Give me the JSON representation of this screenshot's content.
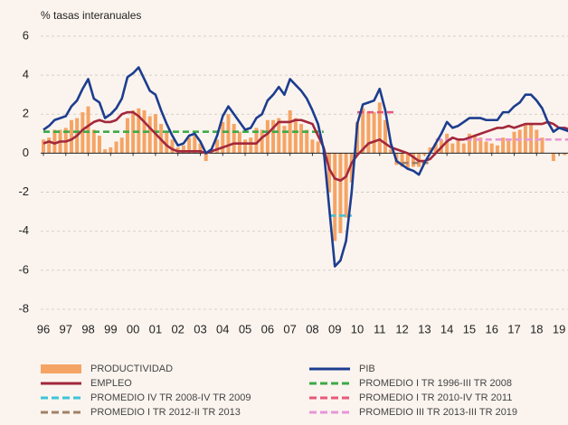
{
  "chart_data": {
    "type": "combo",
    "y_label": "% tasas interanuales",
    "x": [
      1996,
      1996.25,
      1996.5,
      1996.75,
      1997,
      1997.25,
      1997.5,
      1997.75,
      1998,
      1998.25,
      1998.5,
      1998.75,
      1999,
      1999.25,
      1999.5,
      1999.75,
      2000,
      2000.25,
      2000.5,
      2000.75,
      2001,
      2001.25,
      2001.5,
      2001.75,
      2002,
      2002.25,
      2002.5,
      2002.75,
      2003,
      2003.25,
      2003.5,
      2003.75,
      2004,
      2004.25,
      2004.5,
      2004.75,
      2005,
      2005.25,
      2005.5,
      2005.75,
      2006,
      2006.25,
      2006.5,
      2006.75,
      2007,
      2007.25,
      2007.5,
      2007.75,
      2008,
      2008.25,
      2008.5,
      2008.75,
      2009,
      2009.25,
      2009.5,
      2009.75,
      2010,
      2010.25,
      2010.5,
      2010.75,
      2011,
      2011.25,
      2011.5,
      2011.75,
      2012,
      2012.25,
      2012.5,
      2012.75,
      2013,
      2013.25,
      2013.5,
      2013.75,
      2014,
      2014.25,
      2014.5,
      2014.75,
      2015,
      2015.25,
      2015.5,
      2015.75,
      2016,
      2016.25,
      2016.5,
      2016.75,
      2017,
      2017.25,
      2017.5,
      2017.75,
      2018,
      2018.25,
      2018.5,
      2018.75,
      2019,
      2019.25,
      2019.5
    ],
    "series": [
      {
        "name": "PRODUCTIVIDAD",
        "type": "bar",
        "color": "#f5a465",
        "values": [
          0.7,
          0.8,
          1.2,
          1.2,
          1.3,
          1.7,
          1.8,
          2.1,
          2.4,
          1.2,
          0.9,
          0.2,
          0.3,
          0.6,
          0.8,
          1.8,
          2.2,
          2.3,
          2.2,
          1.9,
          2.0,
          1.5,
          1.1,
          0.7,
          0.3,
          0.4,
          0.8,
          0.9,
          0.5,
          -0.4,
          0.1,
          0.7,
          1.6,
          2.0,
          1.5,
          1.1,
          0.7,
          0.8,
          1.3,
          1.2,
          1.7,
          1.7,
          1.8,
          1.4,
          2.2,
          1.8,
          1.5,
          1.2,
          0.7,
          0.6,
          -0.1,
          -2.0,
          -4.5,
          -4.1,
          -3.3,
          -1.5,
          1.6,
          2.3,
          2.1,
          2.1,
          2.6,
          1.7,
          0.2,
          -0.6,
          -0.7,
          -0.8,
          -0.7,
          -0.7,
          -0.1,
          0.3,
          0.5,
          0.7,
          1.0,
          0.5,
          0.7,
          0.5,
          1.0,
          0.9,
          0.8,
          0.6,
          0.5,
          0.4,
          0.8,
          0.7,
          1.1,
          1.2,
          1.5,
          1.5,
          1.2,
          0.8,
          0.0,
          -0.4,
          0.0,
          -0.1,
          -0.1
        ]
      },
      {
        "name": "EMPLEO",
        "type": "line",
        "color": "#a3283c",
        "values": [
          0.5,
          0.6,
          0.5,
          0.6,
          0.6,
          0.7,
          0.9,
          1.2,
          1.4,
          1.6,
          1.7,
          1.6,
          1.6,
          1.7,
          2.0,
          2.1,
          2.1,
          1.9,
          1.6,
          1.3,
          1.0,
          0.7,
          0.4,
          0.2,
          0.1,
          0.1,
          0.1,
          0.1,
          0.1,
          0.0,
          0.1,
          0.2,
          0.3,
          0.4,
          0.5,
          0.5,
          0.5,
          0.5,
          0.5,
          0.8,
          1.0,
          1.3,
          1.6,
          1.6,
          1.6,
          1.7,
          1.7,
          1.6,
          1.5,
          0.9,
          0.3,
          -0.8,
          -1.3,
          -1.4,
          -1.2,
          -0.5,
          -0.1,
          0.2,
          0.5,
          0.6,
          0.7,
          0.5,
          0.3,
          0.2,
          0.1,
          0.0,
          -0.2,
          -0.4,
          -0.4,
          -0.3,
          0.0,
          0.3,
          0.6,
          0.8,
          0.7,
          0.7,
          0.8,
          0.9,
          1.0,
          1.1,
          1.2,
          1.3,
          1.3,
          1.4,
          1.3,
          1.4,
          1.5,
          1.5,
          1.5,
          1.5,
          1.6,
          1.5,
          1.3,
          1.3,
          1.2
        ]
      },
      {
        "name": "PIB",
        "type": "line",
        "color": "#1c3d8f",
        "values": [
          1.2,
          1.4,
          1.7,
          1.8,
          1.9,
          2.4,
          2.7,
          3.3,
          3.8,
          2.8,
          2.6,
          1.8,
          2.0,
          2.3,
          2.8,
          3.9,
          4.1,
          4.4,
          3.8,
          3.2,
          3.0,
          2.2,
          1.5,
          0.9,
          0.4,
          0.5,
          0.9,
          1.0,
          0.6,
          0.0,
          0.2,
          0.9,
          1.9,
          2.4,
          2.0,
          1.6,
          1.2,
          1.3,
          1.8,
          2.0,
          2.7,
          3.0,
          3.4,
          3.0,
          3.8,
          3.5,
          3.2,
          2.8,
          2.2,
          1.5,
          0.2,
          -2.8,
          -5.8,
          -5.5,
          -4.5,
          -2.0,
          1.5,
          2.5,
          2.6,
          2.7,
          3.3,
          2.2,
          0.5,
          -0.4,
          -0.6,
          -0.8,
          -0.9,
          -1.1,
          -0.5,
          0.0,
          0.5,
          1.0,
          1.6,
          1.3,
          1.4,
          1.6,
          1.8,
          1.8,
          1.8,
          1.7,
          1.7,
          1.7,
          2.1,
          2.1,
          2.4,
          2.6,
          3.0,
          3.0,
          2.7,
          2.3,
          1.6,
          1.1,
          1.3,
          1.2,
          1.1
        ]
      }
    ],
    "averages": [
      {
        "name": "PROMEDIO I TR 1996-III TR 2008",
        "color": "#3daa47",
        "value": 1.1,
        "x": [
          1996,
          2008.5
        ]
      },
      {
        "name": "PROMEDIO IV TR 2008-IV TR 2009",
        "color": "#3fc3d8",
        "value": -3.2,
        "x": [
          2008.75,
          2009.75
        ]
      },
      {
        "name": "PROMEDIO I TR 2010-IV TR 2011",
        "color": "#e8587a",
        "value": 2.1,
        "x": [
          2010,
          2011.75
        ]
      },
      {
        "name": "PROMEDIO I TR 2012-II TR 2013",
        "color": "#a08266",
        "value": -0.5,
        "x": [
          2012,
          2013.25
        ]
      },
      {
        "name": "PROMEDIO III TR 2013-III TR 2019",
        "color": "#e796d8",
        "value": 0.7,
        "x": [
          2013.5,
          2019.5
        ]
      }
    ],
    "xlim": [
      1995.88,
      2019.4
    ],
    "xticks": [
      {
        "value": 1996,
        "label": "96"
      },
      {
        "value": 1997,
        "label": "97"
      },
      {
        "value": 1998,
        "label": "98"
      },
      {
        "value": 1999,
        "label": "99"
      },
      {
        "value": 2000,
        "label": "00"
      },
      {
        "value": 2001,
        "label": "01"
      },
      {
        "value": 2002,
        "label": "02"
      },
      {
        "value": 2003,
        "label": "03"
      },
      {
        "value": 2004,
        "label": "04"
      },
      {
        "value": 2005,
        "label": "05"
      },
      {
        "value": 2006,
        "label": "06"
      },
      {
        "value": 2007,
        "label": "07"
      },
      {
        "value": 2008,
        "label": "08"
      },
      {
        "value": 2009,
        "label": "09"
      },
      {
        "value": 2010,
        "label": "10"
      },
      {
        "value": 2011,
        "label": "11"
      },
      {
        "value": 2012,
        "label": "12"
      },
      {
        "value": 2013,
        "label": "13"
      },
      {
        "value": 2014,
        "label": "14"
      },
      {
        "value": 2015,
        "label": "15"
      },
      {
        "value": 2016,
        "label": "16"
      },
      {
        "value": 2017,
        "label": "17"
      },
      {
        "value": 2018,
        "label": "18"
      },
      {
        "value": 2019,
        "label": "19"
      }
    ],
    "ylim": [
      -8,
      6
    ],
    "yticks": [
      -8,
      -6,
      -4,
      -2,
      0,
      2,
      4,
      6
    ],
    "grid": true
  }
}
